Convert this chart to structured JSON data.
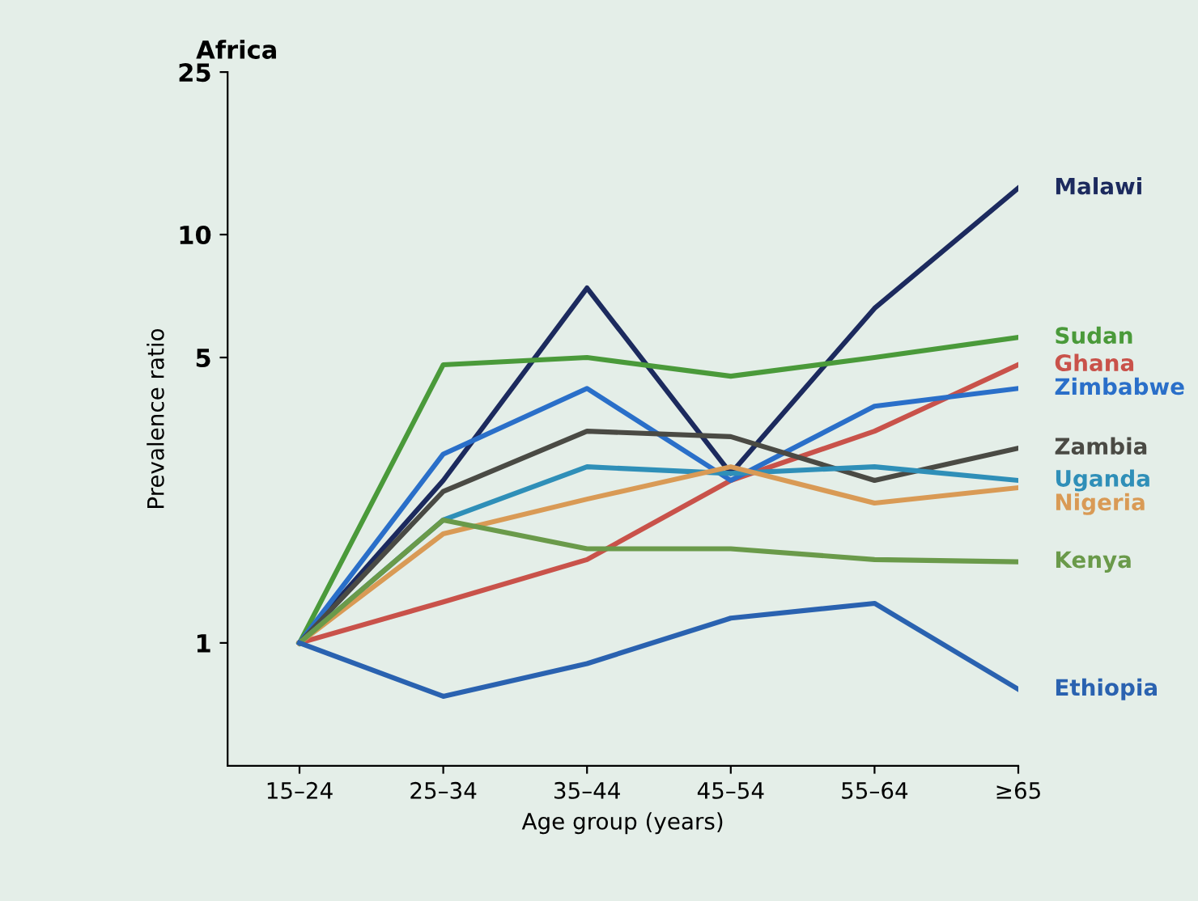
{
  "chart_data": {
    "type": "line",
    "title": "Africa",
    "xlabel": "Age group (years)",
    "ylabel": "Prevalence ratio",
    "categories": [
      "15–24",
      "25–34",
      "35–44",
      "45–54",
      "55–64",
      "≥65"
    ],
    "log": true,
    "ylim": [
      0.5,
      25
    ],
    "yticks": [
      1,
      5,
      10,
      25
    ],
    "grid": false,
    "legend": false,
    "marker": "none",
    "line_style": "solid",
    "series": [
      {
        "name": "Malawi",
        "color": "#1c2a5e",
        "values": [
          1,
          2.5,
          7.4,
          2.6,
          6.6,
          13
        ]
      },
      {
        "name": "Sudan",
        "color": "#4a9a3a",
        "values": [
          1,
          4.8,
          5.0,
          4.5,
          5.0,
          5.6
        ]
      },
      {
        "name": "Ghana",
        "color": "#c9524a",
        "values": [
          1,
          1.26,
          1.6,
          2.5,
          3.3,
          4.8
        ]
      },
      {
        "name": "Zimbabwe",
        "color": "#2a6fc9",
        "values": [
          1,
          2.9,
          4.2,
          2.5,
          3.8,
          4.2
        ]
      },
      {
        "name": "Zambia",
        "color": "#4a4a44",
        "values": [
          1,
          2.35,
          3.3,
          3.2,
          2.5,
          3.0
        ]
      },
      {
        "name": "Uganda",
        "color": "#2f8fb8",
        "values": [
          1,
          2.0,
          2.7,
          2.6,
          2.7,
          2.5
        ]
      },
      {
        "name": "Nigeria",
        "color": "#d99a55",
        "values": [
          1,
          1.85,
          2.25,
          2.7,
          2.2,
          2.4
        ]
      },
      {
        "name": "Kenya",
        "color": "#6a9a4a",
        "values": [
          1,
          2.0,
          1.7,
          1.7,
          1.6,
          1.58
        ]
      },
      {
        "name": "Ethiopia",
        "color": "#2a62b0",
        "values": [
          1,
          0.74,
          0.89,
          1.15,
          1.25,
          0.77
        ]
      }
    ]
  }
}
